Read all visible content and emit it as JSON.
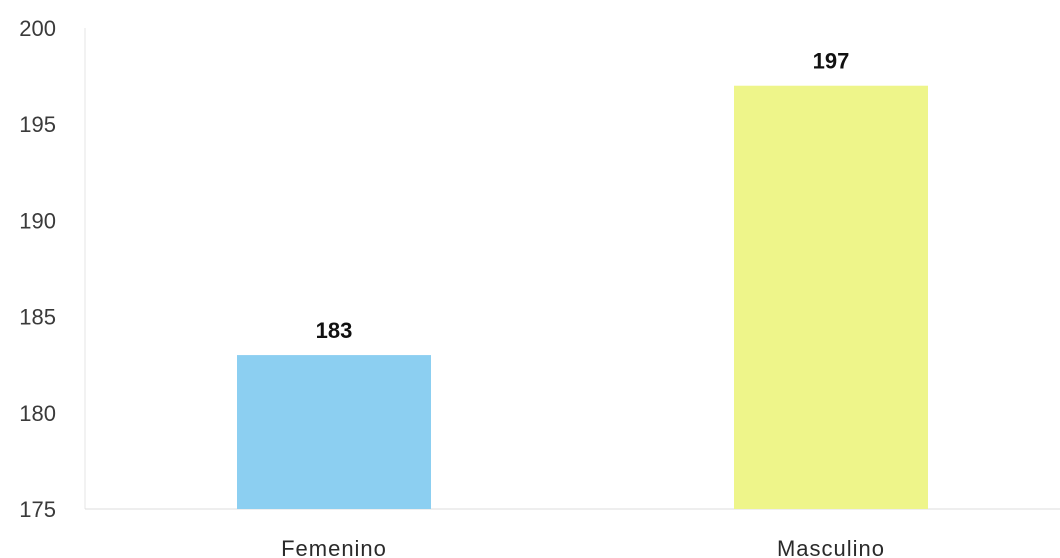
{
  "chart_data": {
    "type": "bar",
    "title": "",
    "xlabel": "",
    "ylabel": "",
    "categories": [
      "Femenino",
      "Masculino"
    ],
    "values": [
      183,
      197
    ],
    "data_labels": [
      "183",
      "197"
    ],
    "colors": [
      "#8ccff1",
      "#eef58a"
    ],
    "ylim": [
      175,
      200
    ],
    "yticks": [
      175,
      180,
      185,
      190,
      195,
      200
    ],
    "ytick_labels": [
      "175",
      "180",
      "185",
      "190",
      "195",
      "200"
    ],
    "grid": false,
    "legend": "none"
  }
}
